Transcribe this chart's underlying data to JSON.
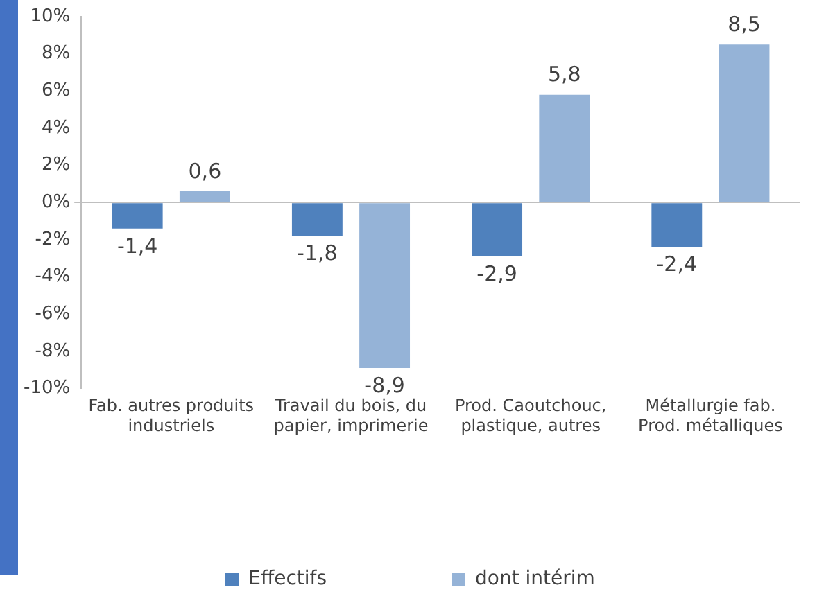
{
  "chart_data": {
    "type": "bar",
    "categories": [
      "Fab. autres produits industriels",
      "Travail du bois, du papier, imprimerie",
      "Prod. Caoutchouc, plastique, autres",
      "Métallurgie fab. Prod. métalliques"
    ],
    "series": [
      {
        "name": "Effectifs",
        "color": "#4f81bd",
        "values": [
          -1.4,
          -1.8,
          -2.9,
          -2.4
        ],
        "value_labels": [
          "-1,4",
          "-1,8",
          "-2,9",
          "-2,4"
        ]
      },
      {
        "name": "dont intérim",
        "color": "#95b3d7",
        "values": [
          0.6,
          -8.9,
          5.8,
          8.5
        ],
        "value_labels": [
          "0,6",
          "-8,9",
          "5,8",
          "8,5"
        ]
      }
    ],
    "ylim": [
      -10,
      10
    ],
    "yticks": [
      {
        "value": -10,
        "label": "-10%"
      },
      {
        "value": -8,
        "label": "-8%"
      },
      {
        "value": -6,
        "label": "-6%"
      },
      {
        "value": -4,
        "label": "-4%"
      },
      {
        "value": -2,
        "label": "-2%"
      },
      {
        "value": 0,
        "label": "0%"
      },
      {
        "value": 2,
        "label": "2%"
      },
      {
        "value": 4,
        "label": "4%"
      },
      {
        "value": 6,
        "label": "6%"
      },
      {
        "value": 8,
        "label": "8%"
      },
      {
        "value": 10,
        "label": "10%"
      }
    ],
    "legend": "bottom"
  }
}
